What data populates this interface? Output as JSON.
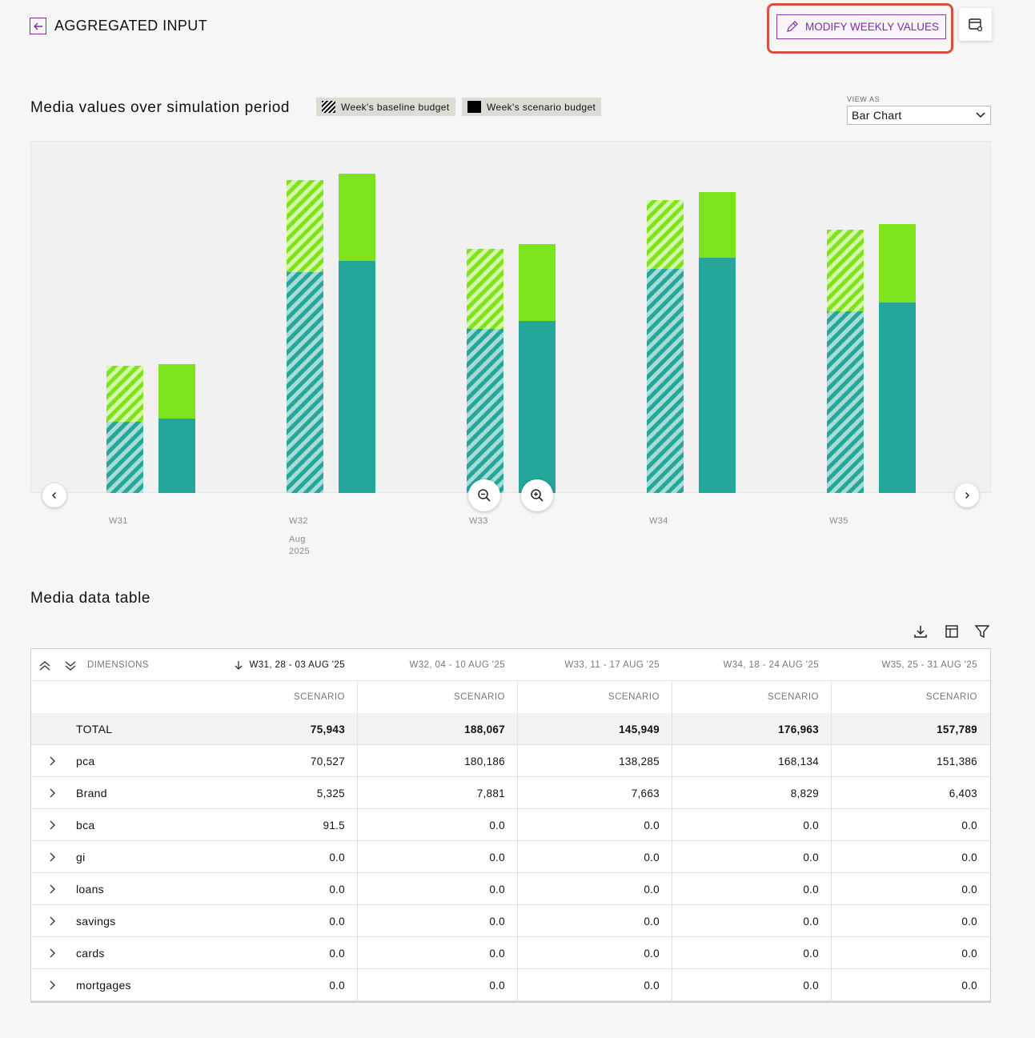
{
  "header": {
    "title": "AGGREGATED INPUT",
    "modify_label": "MODIFY WEEKLY VALUES"
  },
  "chart_section": {
    "title": "Media values over simulation period",
    "legend_baseline": "Week's baseline budget",
    "legend_scenario": "Week's scenario budget",
    "view_as_label": "VIEW AS",
    "view_as_value": "Bar Chart"
  },
  "colors": {
    "teal": "#24a69b",
    "green": "#7de31c",
    "accent": "#7b2f9c",
    "highlight": "#d9503e"
  },
  "chart_data": {
    "type": "bar",
    "stacked": true,
    "categories": [
      "W31",
      "W32",
      "W33",
      "W34",
      "W35"
    ],
    "category_sublabel": {
      "W32": [
        "Aug",
        "2025"
      ]
    },
    "series": [
      {
        "name": "Week's baseline budget",
        "segments": {
          "teal": [
            89,
            276,
            205,
            280,
            227
          ],
          "green": [
            70,
            115,
            100,
            86,
            102
          ]
        }
      },
      {
        "name": "Week's scenario budget",
        "segments": {
          "teal": [
            93,
            290,
            215,
            294,
            238
          ],
          "green": [
            68,
            109,
            96,
            82,
            98
          ]
        }
      }
    ],
    "grid": false,
    "legend": "top-left"
  },
  "table_section": {
    "title": "Media data table",
    "dimensions_label": "DIMENSIONS",
    "columns": [
      "W31, 28 - 03 AUG '25",
      "W32, 04 - 10 AUG '25",
      "W33, 11 - 17 AUG '25",
      "W34, 18 - 24 AUG '25",
      "W35, 25 - 31 AUG '25"
    ],
    "subheader": "SCENARIO",
    "rows": [
      {
        "label": "TOTAL",
        "values": [
          "75,943",
          "188,067",
          "145,949",
          "176,963",
          "157,789"
        ]
      },
      {
        "label": "pca",
        "values": [
          "70,527",
          "180,186",
          "138,285",
          "168,134",
          "151,386"
        ]
      },
      {
        "label": "Brand",
        "values": [
          "5,325",
          "7,881",
          "7,663",
          "8,829",
          "6,403"
        ]
      },
      {
        "label": "bca",
        "values": [
          "91.5",
          "0.0",
          "0.0",
          "0.0",
          "0.0"
        ]
      },
      {
        "label": "gi",
        "values": [
          "0.0",
          "0.0",
          "0.0",
          "0.0",
          "0.0"
        ]
      },
      {
        "label": "loans",
        "values": [
          "0.0",
          "0.0",
          "0.0",
          "0.0",
          "0.0"
        ]
      },
      {
        "label": "savings",
        "values": [
          "0.0",
          "0.0",
          "0.0",
          "0.0",
          "0.0"
        ]
      },
      {
        "label": "cards",
        "values": [
          "0.0",
          "0.0",
          "0.0",
          "0.0",
          "0.0"
        ]
      },
      {
        "label": "mortgages",
        "values": [
          "0.0",
          "0.0",
          "0.0",
          "0.0",
          "0.0"
        ]
      }
    ]
  },
  "icons": [
    "back-arrow-icon",
    "pencil-icon",
    "settings-table-icon",
    "chevron-left-icon",
    "chevron-right-icon",
    "zoom-out-icon",
    "zoom-in-icon",
    "download-icon",
    "columns-icon",
    "filter-icon",
    "collapse-all-icon",
    "expand-all-icon",
    "sort-down-icon",
    "chevron-right-row-icon"
  ]
}
